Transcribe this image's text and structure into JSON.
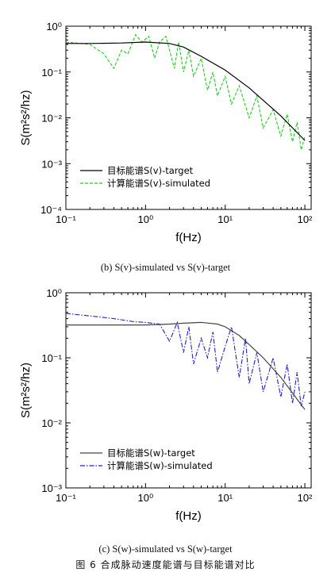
{
  "charts": [
    {
      "caption": "(b) S(v)-simulated vs S(v)-target",
      "xlabel": "f(Hz)",
      "ylabel": "S(m²s²/hz)",
      "legend": [
        "目标能谱S(v)-target",
        "计算能谱S(v)-simulated"
      ]
    },
    {
      "caption": "(c) S(w)-simulated vs S(w)-target",
      "xlabel": "f(Hz)",
      "ylabel": "S(m²s²/hz)",
      "legend": [
        "目标能谱S(w)-target",
        "计算能谱S(w)-simulated"
      ]
    }
  ],
  "figure_caption": "图 6  合成脉动速度能谱与目标能谱对比",
  "chart_data": [
    {
      "type": "line",
      "xscale": "log",
      "yscale": "log",
      "xlim": [
        0.1,
        120
      ],
      "ylim": [
        0.0001,
        1
      ],
      "xticks": [
        0.1,
        1,
        10,
        100
      ],
      "xtick_labels": [
        "10⁻¹",
        "10⁰",
        "10¹",
        "10²"
      ],
      "yticks": [
        0.0001,
        0.001,
        0.01,
        0.1,
        1
      ],
      "ytick_labels": [
        "10⁻⁴",
        "10⁻³",
        "10⁻²",
        "10⁻¹",
        "10⁰"
      ],
      "xlabel": "f(Hz)",
      "ylabel": "S(m²s²/hz)",
      "legend_position": "bottom-left",
      "series": [
        {
          "name": "目标能谱S(v)-target",
          "color": "#000000",
          "style": "solid",
          "x": [
            0.1,
            0.2,
            0.5,
            1,
            2,
            3,
            5,
            10,
            20,
            50,
            100
          ],
          "y": [
            0.42,
            0.42,
            0.43,
            0.45,
            0.42,
            0.35,
            0.22,
            0.11,
            0.045,
            0.011,
            0.0032
          ]
        },
        {
          "name": "计算能谱S(v)-simulated",
          "color": "#22cc22",
          "style": "dashed",
          "x": [
            0.1,
            0.2,
            0.3,
            0.4,
            0.5,
            0.6,
            0.75,
            0.9,
            1.1,
            1.3,
            1.5,
            1.8,
            2.0,
            2.3,
            2.6,
            3,
            3.5,
            4,
            5,
            6,
            7,
            8,
            10,
            12,
            15,
            20,
            25,
            30,
            40,
            50,
            60,
            70,
            80,
            90,
            100
          ],
          "y": [
            0.45,
            0.4,
            0.25,
            0.12,
            0.3,
            0.25,
            0.65,
            0.45,
            0.6,
            0.2,
            0.45,
            0.6,
            0.3,
            0.12,
            0.45,
            0.1,
            0.3,
            0.08,
            0.2,
            0.04,
            0.1,
            0.03,
            0.08,
            0.02,
            0.05,
            0.01,
            0.03,
            0.006,
            0.015,
            0.004,
            0.012,
            0.003,
            0.008,
            0.002,
            0.004
          ]
        }
      ]
    },
    {
      "type": "line",
      "xscale": "log",
      "yscale": "log",
      "xlim": [
        0.1,
        120
      ],
      "ylim": [
        0.001,
        1
      ],
      "xticks": [
        0.1,
        1,
        10,
        100
      ],
      "xtick_labels": [
        "10⁻¹",
        "10⁰",
        "10¹",
        "10²"
      ],
      "yticks": [
        0.001,
        0.01,
        0.1,
        1
      ],
      "ytick_labels": [
        "10⁻³",
        "10⁻²",
        "10⁻¹",
        "10⁰"
      ],
      "xlabel": "f(Hz)",
      "ylabel": "S(m²s²/hz)",
      "legend_position": "bottom-left",
      "series": [
        {
          "name": "目标能谱S(w)-target",
          "color": "#444444",
          "style": "solid",
          "x": [
            0.1,
            0.2,
            0.5,
            1,
            2,
            3,
            5,
            8,
            10,
            15,
            20,
            30,
            50,
            100
          ],
          "y": [
            0.32,
            0.32,
            0.32,
            0.32,
            0.33,
            0.34,
            0.35,
            0.33,
            0.3,
            0.22,
            0.16,
            0.1,
            0.05,
            0.016
          ]
        },
        {
          "name": "计算能谱S(w)-simulated",
          "color": "#1f1fcc",
          "style": "dashdot",
          "x": [
            0.1,
            0.2,
            0.4,
            0.7,
            1,
            1.5,
            2,
            2.5,
            3,
            3.5,
            4,
            5,
            6,
            7,
            8,
            10,
            12,
            15,
            18,
            20,
            25,
            30,
            40,
            50,
            60,
            70,
            80,
            90,
            100
          ],
          "y": [
            0.48,
            0.44,
            0.4,
            0.36,
            0.35,
            0.33,
            0.18,
            0.35,
            0.12,
            0.3,
            0.08,
            0.2,
            0.1,
            0.25,
            0.06,
            0.15,
            0.3,
            0.05,
            0.2,
            0.04,
            0.12,
            0.03,
            0.1,
            0.025,
            0.08,
            0.02,
            0.06,
            0.018,
            0.03
          ]
        }
      ]
    }
  ]
}
